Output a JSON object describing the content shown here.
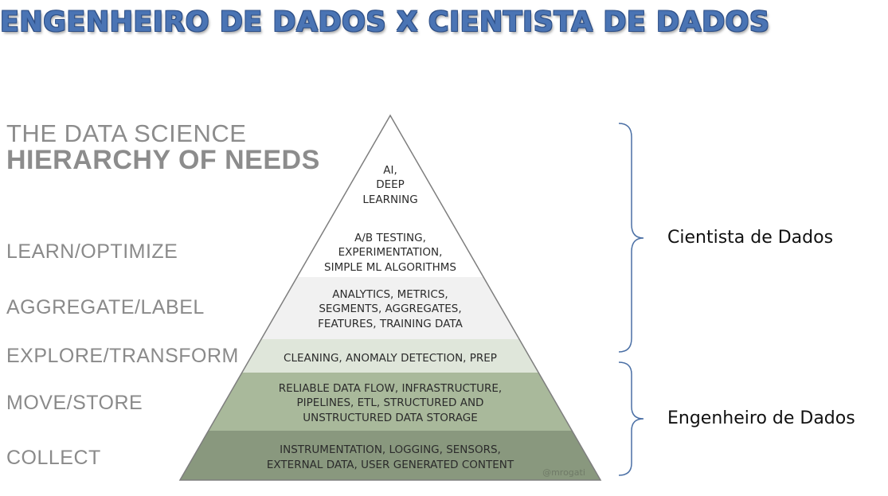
{
  "title": "ENGENHEIRO DE DADOS X CIENTISTA DE DADOS",
  "hierarchy": {
    "line1": "THE DATA SCIENCE",
    "line2": "HIERARCHY OF NEEDS"
  },
  "levels": [
    "LEARN/OPTIMIZE",
    "AGGREGATE/LABEL",
    "EXPLORE/TRANSFORM",
    "MOVE/STORE",
    "COLLECT"
  ],
  "tiers": [
    {
      "lines": [
        "AI,",
        "DEEP",
        "LEARNING"
      ],
      "color": "#ffffff"
    },
    {
      "lines": [
        "A/B TESTING,",
        "EXPERIMENTATION,",
        "SIMPLE ML ALGORITHMS"
      ],
      "color": "#ffffff"
    },
    {
      "lines": [
        "ANALYTICS, METRICS,",
        "SEGMENTS, AGGREGATES,",
        "FEATURES, TRAINING DATA"
      ],
      "color": "#f1f1f1"
    },
    {
      "lines": [
        "CLEANING, ANOMALY DETECTION, PREP"
      ],
      "color": "#dfe6da"
    },
    {
      "lines": [
        "RELIABLE DATA FLOW, INFRASTRUCTURE,",
        "PIPELINES, ETL, STRUCTURED AND",
        "UNSTRUCTURED DATA STORAGE"
      ],
      "color": "#a9b99b"
    },
    {
      "lines": [
        "INSTRUMENTATION, LOGGING, SENSORS,",
        "EXTERNAL DATA, USER GENERATED CONTENT"
      ],
      "color": "#89987e"
    }
  ],
  "watermark": "@mrogati",
  "roles": {
    "scientist": "Cientista de Dados",
    "engineer": "Engenheiro de Dados"
  },
  "colors": {
    "title": "#4a74b4",
    "bracket": "#4a6fa5",
    "label_gray": "#8a8a8a"
  }
}
